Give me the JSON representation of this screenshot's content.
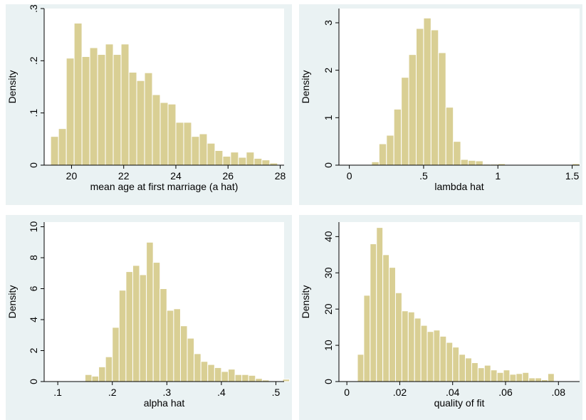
{
  "style": {
    "panel_background": "#eaf2f3",
    "plot_background": "#ffffff",
    "bar_fill": "#d9cf94",
    "bar_stroke": "#ffffff",
    "axis_color": "#000000"
  },
  "chart_data": [
    {
      "type": "bar",
      "subtype": "histogram",
      "xlabel": "mean age at first marriage (a hat)",
      "ylabel": "Density",
      "xlim": [
        18.95,
        28.15
      ],
      "ylim": [
        0,
        0.3
      ],
      "xticks": [
        20,
        22,
        24,
        26,
        28
      ],
      "xtick_labels": [
        "20",
        "22",
        "24",
        "26",
        "28"
      ],
      "yticks": [
        0,
        0.1,
        0.2,
        0.3
      ],
      "ytick_labels": [
        "0",
        ".1",
        ".2",
        ".3"
      ],
      "bin_start": 19.2,
      "bin_width": 0.3,
      "values": [
        0.055,
        0.07,
        0.205,
        0.272,
        0.208,
        0.225,
        0.212,
        0.232,
        0.212,
        0.232,
        0.178,
        0.162,
        0.177,
        0.135,
        0.12,
        0.117,
        0.082,
        0.082,
        0.055,
        0.06,
        0.042,
        0.028,
        0.017,
        0.025,
        0.015,
        0.025,
        0.013,
        0.01,
        0.004
      ]
    },
    {
      "type": "bar",
      "subtype": "histogram",
      "xlabel": "lambda hat",
      "ylabel": "Density",
      "xlim": [
        -0.07,
        1.55
      ],
      "ylim": [
        0,
        3.3
      ],
      "xticks": [
        0,
        0.5,
        1,
        1.5
      ],
      "xtick_labels": [
        "0",
        ".5",
        "1",
        "1.5"
      ],
      "yticks": [
        0,
        1,
        2,
        3
      ],
      "ytick_labels": [
        "0",
        "1",
        "2",
        "3"
      ],
      "bin_start": 0.15,
      "bin_width": 0.05,
      "values": [
        0.07,
        0.45,
        0.63,
        1.18,
        1.85,
        2.33,
        2.88,
        3.1,
        2.85,
        2.37,
        1.22,
        0.5,
        0.12,
        0.1,
        0.09,
        0.02,
        0.02,
        0.03,
        0.015,
        0.0,
        0.0,
        0.0,
        0.0,
        0.0,
        0.0,
        0.0,
        0.0,
        0.03
      ]
    },
    {
      "type": "bar",
      "subtype": "histogram",
      "xlabel": "alpha hat",
      "ylabel": "Density",
      "xlim": [
        0.075,
        0.515
      ],
      "ylim": [
        0,
        10.3
      ],
      "xticks": [
        0.1,
        0.2,
        0.3,
        0.4,
        0.5
      ],
      "xtick_labels": [
        ".1",
        ".2",
        ".3",
        ".4",
        ".5"
      ],
      "yticks": [
        0,
        2,
        4,
        6,
        8,
        10
      ],
      "ytick_labels": [
        "0",
        "2",
        "4",
        "6",
        "8",
        "10"
      ],
      "bin_start": 0.15,
      "bin_width": 0.0125,
      "values": [
        0.45,
        0.35,
        0.95,
        1.6,
        3.5,
        5.9,
        7.1,
        7.5,
        6.9,
        9.0,
        7.7,
        6.0,
        4.6,
        4.7,
        3.6,
        2.8,
        1.8,
        1.3,
        1.1,
        0.9,
        0.65,
        0.8,
        0.45,
        0.45,
        0.4,
        0.2,
        0.1,
        0.0,
        0.0,
        0.15
      ]
    },
    {
      "type": "bar",
      "subtype": "histogram",
      "xlabel": "quality of fit",
      "ylabel": "Density",
      "xlim": [
        -0.003,
        0.088
      ],
      "ylim": [
        0,
        44
      ],
      "xticks": [
        0,
        0.02,
        0.04,
        0.06,
        0.08
      ],
      "xtick_labels": [
        "0",
        ".02",
        ".04",
        ".06",
        ".08"
      ],
      "yticks": [
        0,
        10,
        20,
        30,
        40
      ],
      "ytick_labels": [
        "0",
        "10",
        "20",
        "30",
        "40"
      ],
      "bin_start": 0.004,
      "bin_width": 0.0024,
      "values": [
        7.5,
        23.8,
        38,
        42.5,
        35,
        31.5,
        24.5,
        19.5,
        19.2,
        17.5,
        15.5,
        13.8,
        14.2,
        12.5,
        10.8,
        9.5,
        7.5,
        6.5,
        5.2,
        3.8,
        4.5,
        3.2,
        2.5,
        3.2,
        2.0,
        2.2,
        2.5,
        1.0,
        1.0,
        0.5,
        2.2
      ]
    }
  ]
}
